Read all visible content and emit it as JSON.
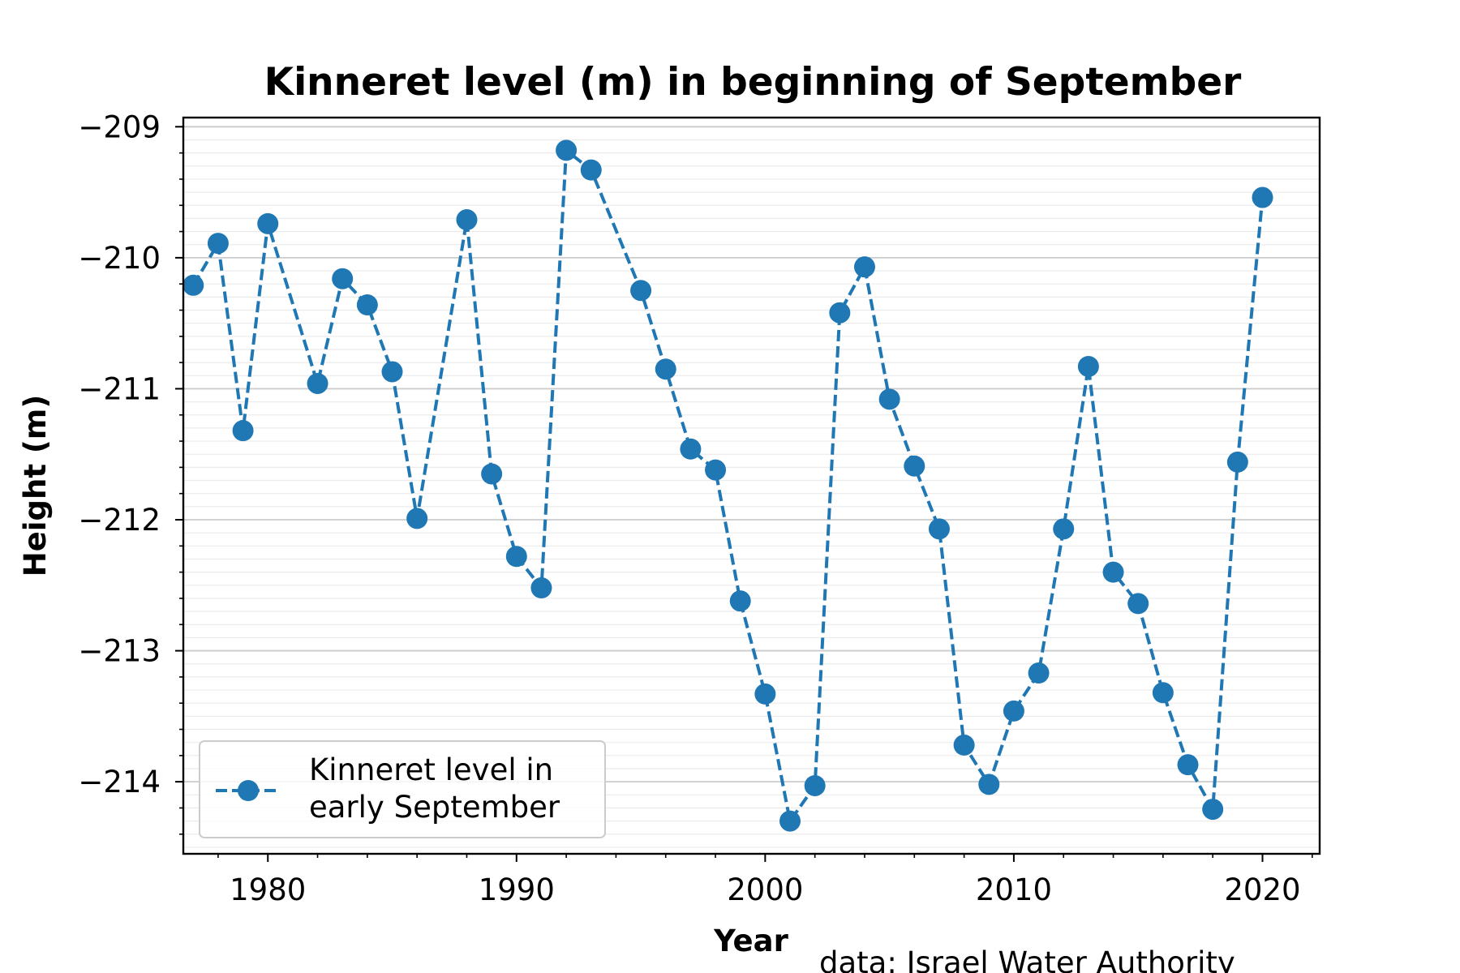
{
  "chart_data": {
    "type": "line",
    "title": "Kinneret level (m) in beginning of September",
    "xlabel": "Year",
    "ylabel": "Height (m)",
    "xlim": [
      1976.6,
      2022.3
    ],
    "ylim": [
      -214.55,
      -208.93
    ],
    "x_ticks": [
      1980,
      1990,
      2000,
      2010,
      2020
    ],
    "y_ticks": [
      -209,
      -210,
      -211,
      -212,
      -213,
      -214
    ],
    "y_tick_labels": [
      "−209",
      "−210",
      "−211",
      "−212",
      "−213",
      "−214"
    ],
    "grid": "horizontal major and minor",
    "legend_position": "lower-left",
    "source_note": "data: Israel Water Authority",
    "series": [
      {
        "name": "Kinneret level in early September",
        "legend_lines": [
          "Kinneret level in",
          "early September"
        ],
        "color": "#1f77b4",
        "line_style": "dashed",
        "marker": "circle",
        "x": [
          1977,
          1978,
          1979,
          1980,
          1982,
          1983,
          1984,
          1985,
          1986,
          1988,
          1989,
          1990,
          1991,
          1992,
          1993,
          1995,
          1996,
          1997,
          1998,
          1999,
          2000,
          2001,
          2002,
          2003,
          2004,
          2005,
          2006,
          2007,
          2008,
          2009,
          2010,
          2011,
          2012,
          2013,
          2014,
          2015,
          2016,
          2017,
          2018,
          2019,
          2020
        ],
        "y": [
          -210.21,
          -209.89,
          -211.32,
          -209.74,
          -210.96,
          -210.16,
          -210.36,
          -210.87,
          -211.99,
          -209.71,
          -211.65,
          -212.28,
          -212.52,
          -209.18,
          -209.33,
          -210.25,
          -210.85,
          -211.46,
          -211.62,
          -212.62,
          -213.33,
          -214.3,
          -214.03,
          -210.42,
          -210.07,
          -211.08,
          -211.59,
          -212.07,
          -213.72,
          -214.02,
          -213.46,
          -213.17,
          -212.07,
          -210.83,
          -212.4,
          -212.64,
          -213.32,
          -213.87,
          -214.21,
          -211.56,
          -209.54
        ]
      }
    ]
  }
}
